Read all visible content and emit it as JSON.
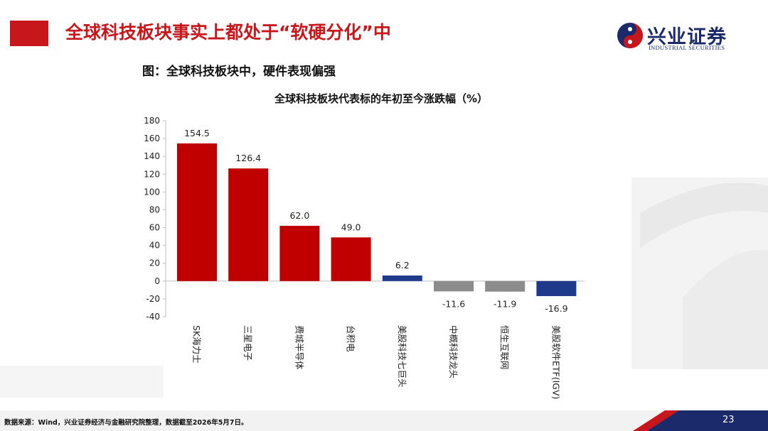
{
  "header": {
    "title": "全球科技板块事实上都处于“软硬分化”中",
    "logo_cn": "兴业证券",
    "logo_en": "INDUSTRIAL SECURITIES"
  },
  "figure_caption": "图：全球科技板块中，硬件表现偏强",
  "chart_data": {
    "type": "bar",
    "title": "全球科技板块代表标的年初至今涨跌幅（%）",
    "categories": [
      "SK海力士",
      "三星电子",
      "费城半导体",
      "台积电",
      "美股科技七巨头",
      "中概科技龙头",
      "恒生互联网",
      "美股软件ETF(IGV)"
    ],
    "values": [
      154.5,
      126.4,
      62.0,
      49.0,
      6.2,
      -11.6,
      -11.9,
      -16.9
    ],
    "value_labels": [
      "154.5",
      "126.4",
      "62.0",
      "49.0",
      "6.2",
      "-11.6",
      "-11.9",
      "-16.9"
    ],
    "ylim": [
      -40,
      180
    ],
    "yticks": [
      180,
      160,
      140,
      120,
      100,
      80,
      60,
      40,
      20,
      0,
      -20,
      -40
    ],
    "bar_colors": [
      "#c00000",
      "#c00000",
      "#c00000",
      "#c00000",
      "#1f3a8a",
      "#8c8c8c",
      "#8c8c8c",
      "#1f3a8a"
    ],
    "grid": false,
    "legend": "none"
  },
  "colors": {
    "brand_red": "#c8161d",
    "brand_navy": "#1b2a6b"
  },
  "footer": {
    "source": "数据来源：Wind，兴业证券经济与金融研究院整理，数据截至2026年5月7日。",
    "page_number": "23"
  }
}
